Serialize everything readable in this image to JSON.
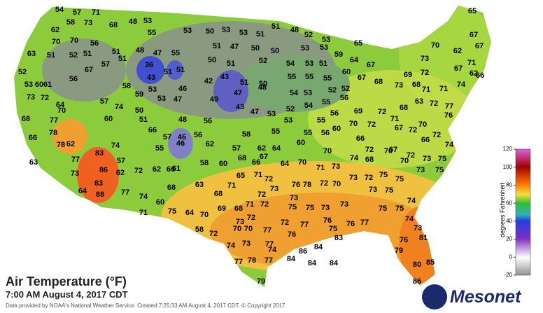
{
  "title": "Air Temperature (°F)",
  "subtitle": "7:00 AM August 4, 2017 CDT",
  "credit": "Data provided by NOAA's National Weather Service. Created 7:25:33 AM August 4, 2017 CDT. © Copyright 2017",
  "logo": "Mesonet",
  "colorbar": {
    "label": "degrees Fahrenheit",
    "lim": [
      -20,
      120
    ],
    "ticks": [
      120,
      100,
      80,
      60,
      40,
      20,
      0,
      -20
    ]
  },
  "stations": [
    54,
    57,
    71,
    65,
    58,
    73,
    68,
    48,
    53,
    51,
    48,
    52,
    53,
    67,
    62,
    55,
    53,
    50,
    53,
    53,
    51,
    70,
    62,
    67,
    70,
    70,
    56,
    48,
    47,
    55,
    51,
    47,
    50,
    50,
    53,
    53,
    59,
    65,
    73,
    71,
    63,
    51,
    52,
    51,
    51,
    51,
    57,
    67,
    56,
    36,
    51,
    50,
    51,
    52,
    54,
    53,
    51,
    64,
    67,
    60,
    67,
    68,
    67,
    62,
    69,
    72,
    66,
    52,
    43,
    51,
    46,
    42,
    43,
    51,
    50,
    55,
    55,
    55,
    52,
    53,
    53,
    60,
    61,
    58,
    59,
    53,
    47,
    49,
    47,
    48,
    54,
    53,
    52,
    56,
    73,
    68,
    71,
    71,
    74,
    73,
    72,
    64,
    57,
    74,
    50,
    68,
    63,
    72,
    77,
    70,
    43,
    47,
    53,
    52,
    54,
    55,
    56,
    69,
    72,
    68,
    77,
    60,
    51,
    48,
    56,
    55,
    53,
    55,
    60,
    70,
    72,
    71,
    70,
    76,
    78,
    66,
    62,
    66,
    57,
    46,
    56,
    58,
    55,
    56,
    66,
    67,
    72,
    72,
    74,
    78,
    83,
    74,
    55,
    46,
    62,
    57,
    62,
    64,
    60,
    70,
    72,
    67,
    66,
    72,
    73,
    75,
    63,
    77,
    57,
    62,
    61,
    58,
    60,
    68,
    66,
    67,
    64,
    70,
    71,
    73,
    74,
    68,
    70,
    70,
    73,
    75,
    73,
    86,
    62,
    72,
    66,
    65,
    71,
    72,
    72,
    70,
    73,
    72,
    75,
    75,
    83,
    68,
    63,
    71,
    73,
    76,
    78,
    73,
    75,
    64,
    88,
    77,
    74,
    68,
    72,
    73,
    60,
    75,
    64,
    70,
    69,
    68,
    71,
    72,
    75,
    75,
    73,
    73,
    75,
    75,
    71,
    74,
    73,
    72,
    72,
    77,
    76,
    76,
    77,
    74,
    73,
    58,
    72,
    70,
    70,
    77,
    76,
    75,
    83,
    76,
    81,
    74,
    73,
    77,
    74,
    84,
    86,
    84,
    77,
    78,
    77,
    84,
    84,
    79,
    80,
    85,
    79,
    86
  ]
}
